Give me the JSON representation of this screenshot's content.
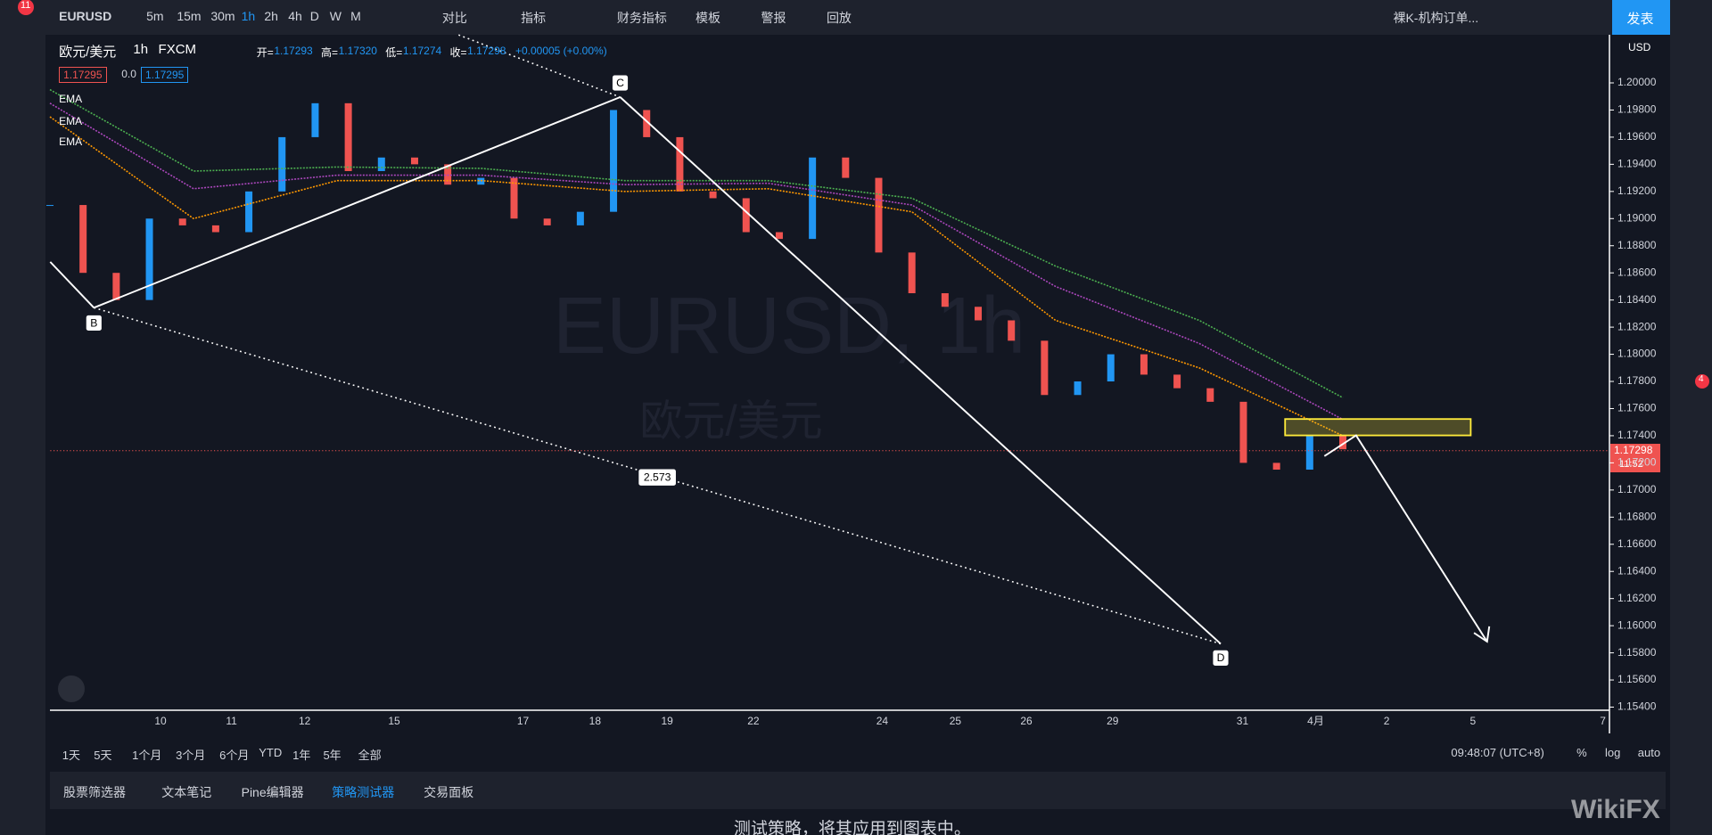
{
  "top_bar": {
    "badge": "11",
    "symbol": "EURUSD",
    "intervals": [
      "5m",
      "15m",
      "30m",
      "1h",
      "2h",
      "4h",
      "D",
      "W",
      "M"
    ],
    "buttons": [
      "对比",
      "指标",
      "财务指标",
      "模板",
      "警报",
      "回放"
    ],
    "layout_name": "裸K-机构订单...",
    "publish": "发表"
  },
  "legend": {
    "symbol": "欧元/美元",
    "interval": "1h",
    "source": "FXCM",
    "open_label": "开=",
    "open": "1.17293",
    "high_label": "高=",
    "high": "1.17320",
    "low_label": "低=",
    "low": "1.17274",
    "close_label": "收=",
    "close": "1.17298",
    "change": "+0.00005 (+0.00%)",
    "price_boxes": [
      "1.17295",
      "0.0",
      "1.17295"
    ],
    "indicators": [
      "EMA",
      "EMA",
      "EMA"
    ]
  },
  "watermark": {
    "title": "EURUSD, 1h",
    "subtitle": "欧元/美元"
  },
  "pattern_labels": {
    "b": "B",
    "c": "C",
    "d": "D",
    "ratio": "2.573"
  },
  "price_axis": {
    "currency": "USD",
    "ticks": [
      {
        "value": 1.2,
        "label": "1.20000"
      },
      {
        "value": 1.198,
        "label": "1.19800"
      },
      {
        "value": 1.196,
        "label": "1.19600"
      },
      {
        "value": 1.194,
        "label": "1.19400"
      },
      {
        "value": 1.192,
        "label": "1.19200"
      },
      {
        "value": 1.19,
        "label": "1.19000"
      },
      {
        "value": 1.188,
        "label": "1.18800"
      },
      {
        "value": 1.186,
        "label": "1.18600"
      },
      {
        "value": 1.184,
        "label": "1.18400"
      },
      {
        "value": 1.182,
        "label": "1.18200"
      },
      {
        "value": 1.18,
        "label": "1.18000"
      },
      {
        "value": 1.178,
        "label": "1.17800"
      },
      {
        "value": 1.176,
        "label": "1.17600"
      },
      {
        "value": 1.174,
        "label": "1.17400"
      },
      {
        "value": 1.172,
        "label": "1.17200"
      },
      {
        "value": 1.17,
        "label": "1.17000"
      },
      {
        "value": 1.168,
        "label": "1.16800"
      },
      {
        "value": 1.166,
        "label": "1.16600"
      },
      {
        "value": 1.164,
        "label": "1.16400"
      },
      {
        "value": 1.162,
        "label": "1.16200"
      },
      {
        "value": 1.16,
        "label": "1.16000"
      },
      {
        "value": 1.158,
        "label": "1.15800"
      },
      {
        "value": 1.156,
        "label": "1.15600"
      },
      {
        "value": 1.154,
        "label": "1.15400"
      }
    ],
    "last_price": "1.17298",
    "countdown": "11:52"
  },
  "price_series": {
    "closes": [
      1.191,
      1.186,
      1.184,
      1.19,
      1.1895,
      1.189,
      1.192,
      1.196,
      1.1985,
      1.1935,
      1.1945,
      1.194,
      1.1925,
      1.193,
      1.19,
      1.1895,
      1.1905,
      1.198,
      1.196,
      1.192,
      1.1915,
      1.189,
      1.1885,
      1.1945,
      1.193,
      1.1875,
      1.1845,
      1.1835,
      1.1825,
      1.181,
      1.177,
      1.178,
      1.18,
      1.1785,
      1.1775,
      1.1765,
      1.172,
      1.1715,
      1.174,
      1.173
    ],
    "up_color": "#2196f3",
    "down_color": "#ef5350",
    "ema": [
      {
        "color": "#4caf50",
        "values": [
          1.1995,
          1.1935,
          1.1938,
          1.1937,
          1.1928,
          1.1928,
          1.1915,
          1.1865,
          1.1825,
          1.1768
        ]
      },
      {
        "color": "#ab47bc",
        "values": [
          1.1985,
          1.1922,
          1.1932,
          1.1932,
          1.1925,
          1.1926,
          1.191,
          1.185,
          1.1808,
          1.1752
        ]
      },
      {
        "color": "#ff9800",
        "values": [
          1.1975,
          1.19,
          1.1928,
          1.1928,
          1.192,
          1.1922,
          1.1905,
          1.1825,
          1.179,
          1.174
        ]
      }
    ]
  },
  "time_axis": {
    "labels": [
      "10",
      "11",
      "12",
      "15",
      "17",
      "18",
      "19",
      "22",
      "24",
      "25",
      "26",
      "29",
      "31",
      "4月",
      "2",
      "5",
      "7"
    ]
  },
  "range_bar": {
    "ranges": [
      "1天",
      "5天",
      "1个月",
      "3个月",
      "6个月",
      "YTD",
      "1年",
      "5年",
      "全部"
    ],
    "clock": "09:48:07 (UTC+8)",
    "options": [
      "%",
      "log",
      "auto"
    ]
  },
  "tabs": {
    "items": [
      "股票筛选器",
      "文本笔记",
      "Pine编辑器",
      "策略测试器",
      "交易面板"
    ],
    "active": 3
  },
  "panel": {
    "message": "测试策略，将其应用到图表中。"
  },
  "right_badge": "4",
  "brand": "WikiFX"
}
